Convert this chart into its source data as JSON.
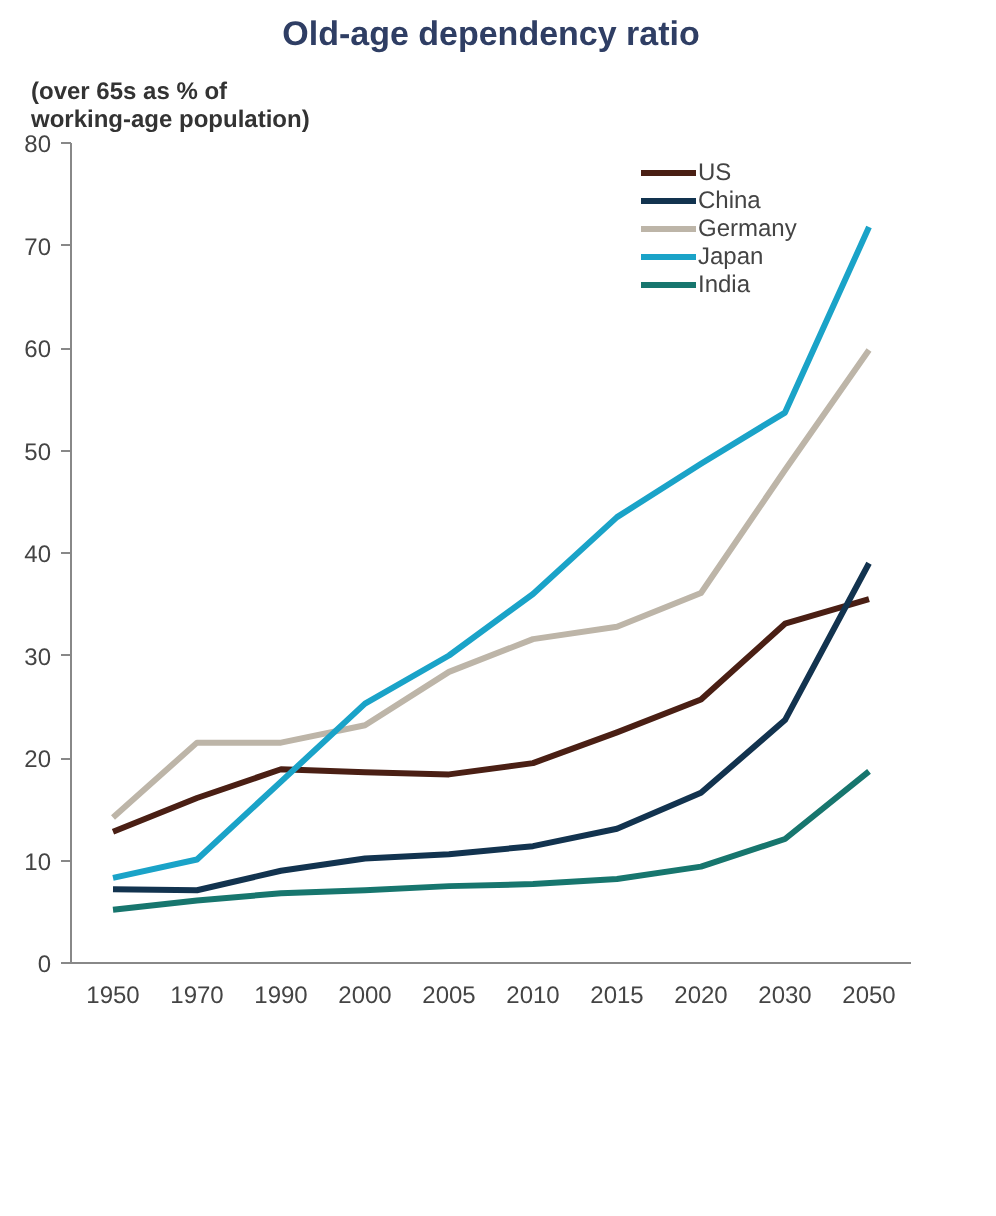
{
  "chart_data": {
    "type": "line",
    "title": "Old-age dependency ratio",
    "ylabel": "(over 65s as % of\nworking-age population)",
    "categories": [
      "1950",
      "1970",
      "1990",
      "2000",
      "2005",
      "2010",
      "2015",
      "2020",
      "2030",
      "2050"
    ],
    "series": [
      {
        "name": "US",
        "color": "#4a1f14",
        "values": [
          12.8,
          16.1,
          18.9,
          18.6,
          18.4,
          19.5,
          22.5,
          25.7,
          33.1,
          35.5
        ]
      },
      {
        "name": "China",
        "color": "#12334f",
        "values": [
          7.2,
          7.1,
          9.0,
          10.2,
          10.6,
          11.4,
          13.1,
          16.6,
          23.7,
          39.0
        ]
      },
      {
        "name": "Germany",
        "color": "#bdb5a8",
        "values": [
          14.2,
          21.5,
          21.5,
          23.2,
          28.4,
          31.6,
          32.8,
          36.1,
          48.1,
          59.8
        ]
      },
      {
        "name": "Japan",
        "color": "#1aa3c8",
        "values": [
          8.3,
          10.1,
          17.7,
          25.3,
          30.0,
          36.0,
          43.5,
          48.7,
          53.7,
          71.8
        ]
      },
      {
        "name": "India",
        "color": "#17766e",
        "values": [
          5.2,
          6.1,
          6.8,
          7.1,
          7.5,
          7.7,
          8.2,
          9.4,
          12.1,
          18.7
        ]
      }
    ],
    "ylim": [
      0,
      80
    ],
    "yticks": [
      0,
      10,
      20,
      30,
      40,
      50,
      60,
      70,
      80
    ],
    "grid": false,
    "legend": "top right",
    "marker": "none",
    "line_style": "solid"
  }
}
